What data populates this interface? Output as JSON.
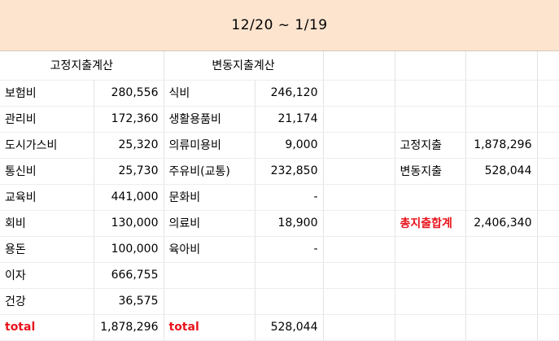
{
  "title": "12/20 ~ 1/19",
  "fixed": {
    "heading": "고정지출계산",
    "rows": [
      {
        "label": "보험비",
        "value": "280,556"
      },
      {
        "label": "관리비",
        "value": "172,360"
      },
      {
        "label": "도시가스비",
        "value": "25,320"
      },
      {
        "label": "통신비",
        "value": "25,730"
      },
      {
        "label": "교육비",
        "value": "441,000"
      },
      {
        "label": "회비",
        "value": "130,000"
      },
      {
        "label": "용돈",
        "value": "100,000"
      },
      {
        "label": "이자",
        "value": "666,755"
      },
      {
        "label": "건강",
        "value": "36,575"
      }
    ],
    "total_label": "total",
    "total_value": "1,878,296"
  },
  "variable": {
    "heading": "변동지출계산",
    "rows": [
      {
        "label": "식비",
        "value": "246,120"
      },
      {
        "label": "생활용품비",
        "value": "21,174"
      },
      {
        "label": "의류미용비",
        "value": "9,000"
      },
      {
        "label": "주유비(교통)",
        "value": "232,850"
      },
      {
        "label": "문화비",
        "value": "-"
      },
      {
        "label": "의료비",
        "value": "18,900"
      },
      {
        "label": "육아비",
        "value": "-"
      }
    ],
    "total_label": "total",
    "total_value": "528,044"
  },
  "summary": {
    "fixed_label": "고정지출",
    "fixed_value": "1,878,296",
    "variable_label": "변동지출",
    "variable_value": "528,044",
    "total_label": "총지출합계",
    "total_value": "2,406,340"
  },
  "colors": {
    "header_bg": "#fce4cf",
    "total_red": "#e8141c"
  }
}
